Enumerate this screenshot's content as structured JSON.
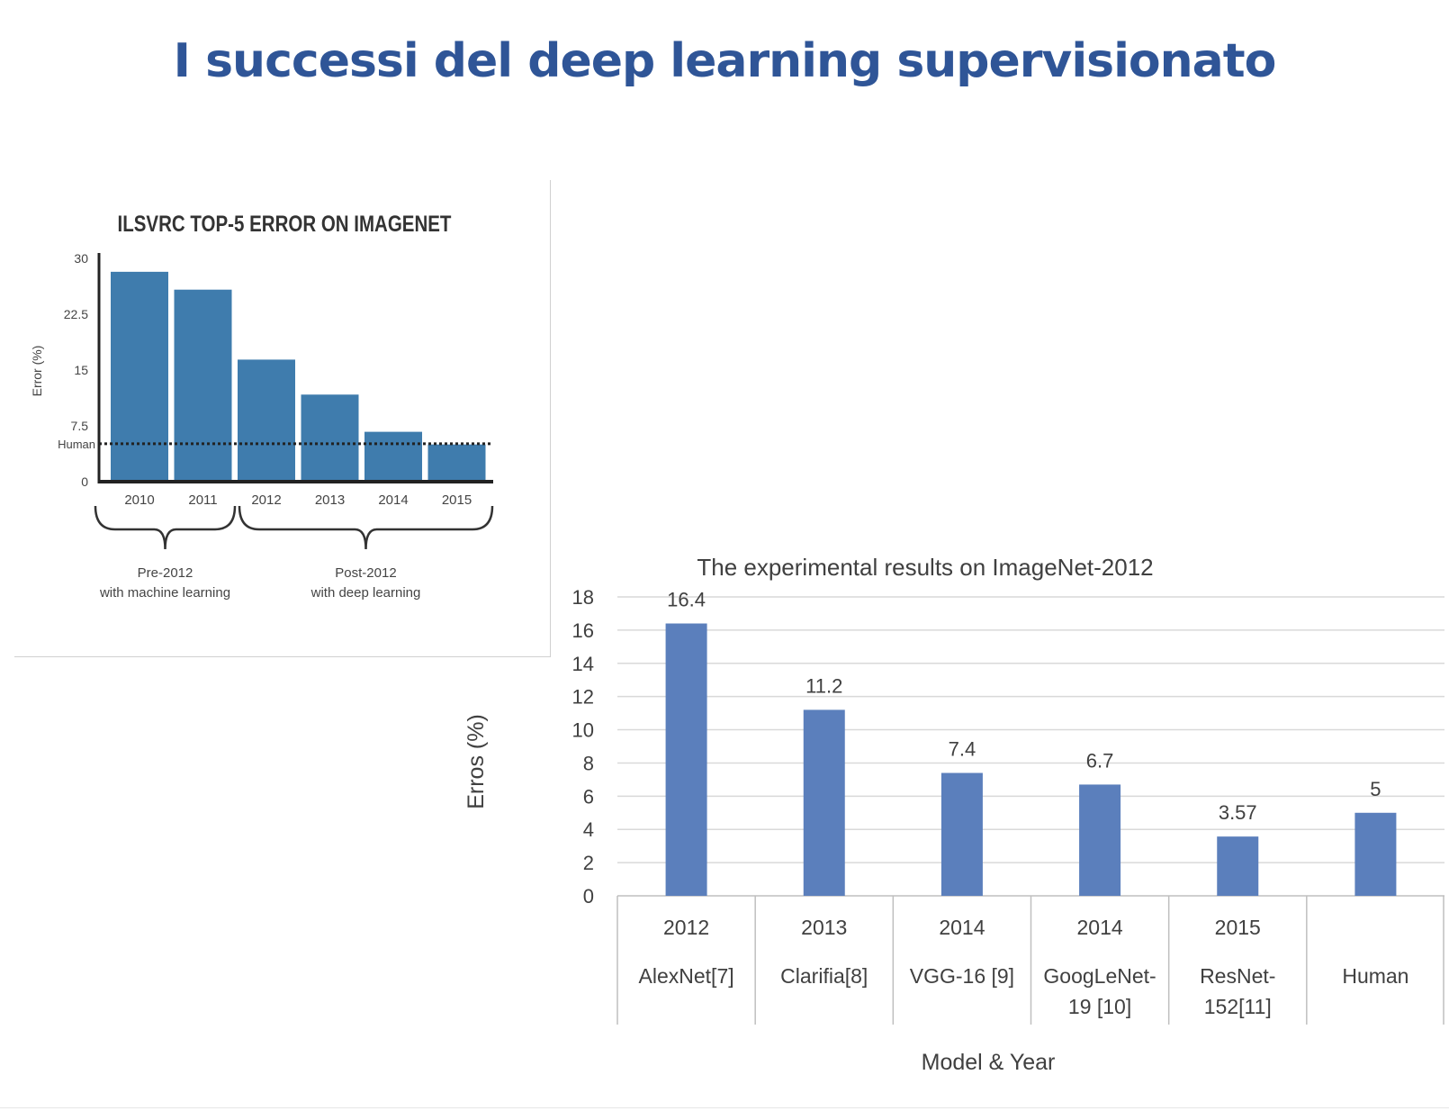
{
  "slide": {
    "title": "I successi del deep learning supervisionato"
  },
  "colors": {
    "title": "#2f5597",
    "chart1_bar": "#3f7cad",
    "chart2_bar": "#5b7fbc",
    "grid": "#d9d9d9"
  },
  "chart_data": [
    {
      "type": "bar",
      "title": "ILSVRC TOP-5 ERROR ON IMAGENET",
      "ylabel": "Error (%)",
      "xlabel": "",
      "categories": [
        "2010",
        "2011",
        "2012",
        "2013",
        "2014",
        "2015"
      ],
      "values": [
        28.2,
        25.8,
        16.4,
        11.7,
        6.7,
        5.0
      ],
      "ylim": [
        0,
        30
      ],
      "yticks": [
        "0",
        "7.5",
        "15",
        "22.5",
        "30"
      ],
      "reference_line": {
        "label": "Human",
        "value": 5.1
      },
      "groups": [
        {
          "line1": "Pre-2012",
          "line2": "with machine learning"
        },
        {
          "line1": "Post-2012",
          "line2": "with deep learning"
        }
      ],
      "grid": false
    },
    {
      "type": "bar",
      "title": "The experimental results on ImageNet-2012",
      "ylabel": "Erros (%)",
      "xlabel": "Model & Year",
      "categories": [
        {
          "year": "2012",
          "model": [
            "AlexNet[7]"
          ]
        },
        {
          "year": "2013",
          "model": [
            "Clarifia[8]"
          ]
        },
        {
          "year": "2014",
          "model": [
            "VGG-16 [9]"
          ]
        },
        {
          "year": "2014",
          "model": [
            "GoogLeNet-",
            "19 [10]"
          ]
        },
        {
          "year": "2015",
          "model": [
            "ResNet-",
            "152[11]"
          ]
        },
        {
          "year": "",
          "model": [
            "Human"
          ]
        }
      ],
      "values": [
        16.4,
        11.2,
        7.4,
        6.7,
        3.57,
        5
      ],
      "data_labels": [
        "16.4",
        "11.2",
        "7.4",
        "6.7",
        "3.57",
        "5"
      ],
      "ylim": [
        0,
        18
      ],
      "yticks": [
        "0",
        "2",
        "4",
        "6",
        "8",
        "10",
        "12",
        "14",
        "16",
        "18"
      ],
      "grid": true
    }
  ]
}
